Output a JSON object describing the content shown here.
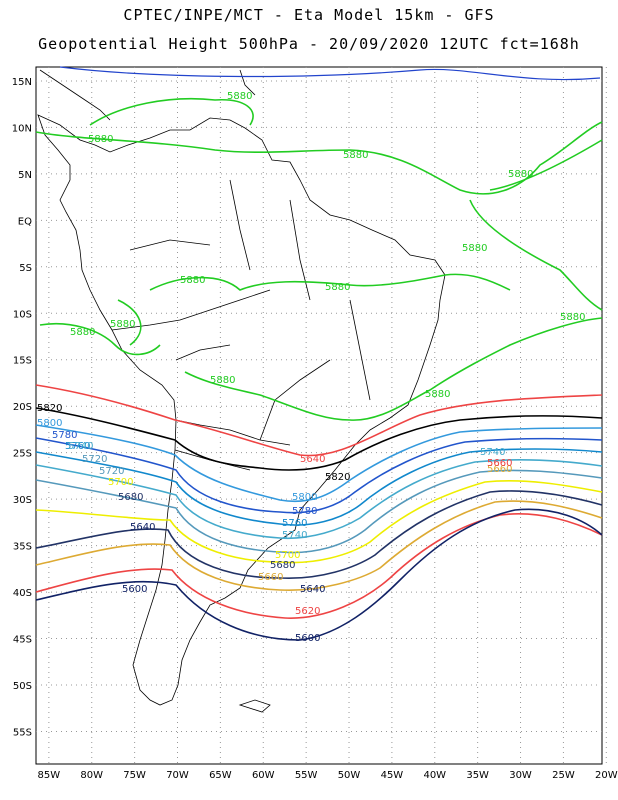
{
  "header": {
    "line1": "CPTEC/INPE/MCT -  Eta Model 15km - GFS",
    "line2": "Geopotential Height 500hPa - 20/09/2020 12UTC fct=168h"
  },
  "axes": {
    "lat_labels": [
      "15N",
      "10N",
      "5N",
      "EQ",
      "5S",
      "10S",
      "15S",
      "20S",
      "25S",
      "30S",
      "35S",
      "40S",
      "45S",
      "50S",
      "55S"
    ],
    "lon_labels": [
      "85W",
      "80W",
      "75W",
      "70W",
      "65W",
      "60W",
      "55W",
      "50W",
      "45W",
      "40W",
      "35W",
      "30W",
      "25W",
      "20W"
    ],
    "lat_range": [
      -58.5,
      16.5
    ],
    "lon_range": [
      -86.5,
      -20.5
    ],
    "grid": "dotted"
  },
  "contour_labels": {
    "green_5880": [
      "5880",
      "5880",
      "5880",
      "5880",
      "5880",
      "5880",
      "5880",
      "5880",
      "5880",
      "5880",
      "5880",
      "5880",
      "5880"
    ],
    "c5820": [
      "5820",
      "5820"
    ],
    "c5800": [
      "5800",
      "5800"
    ],
    "c5780": [
      "5780",
      "5780"
    ],
    "c5760": [
      "5760",
      "5760"
    ],
    "c5740": [
      "5740",
      "5740",
      "5740"
    ],
    "c5720": [
      "5720",
      "5720"
    ],
    "c5700": [
      "5700",
      "5700"
    ],
    "c5680": [
      "5680",
      "5680"
    ],
    "c5660": [
      "5660",
      "5660",
      "5660"
    ],
    "c5640": [
      "5640",
      "5640",
      "5640"
    ],
    "c5620": [
      "5620"
    ],
    "c5600": [
      "5600",
      "5600"
    ]
  },
  "colors": {
    "c5880": "#22cc22",
    "c5820": "#000000",
    "c5800": "#3399dd",
    "c5780": "#2255cc",
    "c5760": "#1188cc",
    "c5740": "#44aacc",
    "c5720": "#5599bb",
    "c5700": "#eeee00",
    "c5680": "#223366",
    "c5660": "#ddaa33",
    "c5640": "#ee4444",
    "c5620": "#ee4444",
    "c5600": "#112266",
    "coast": "#000000",
    "high_blue": "#2244cc"
  }
}
